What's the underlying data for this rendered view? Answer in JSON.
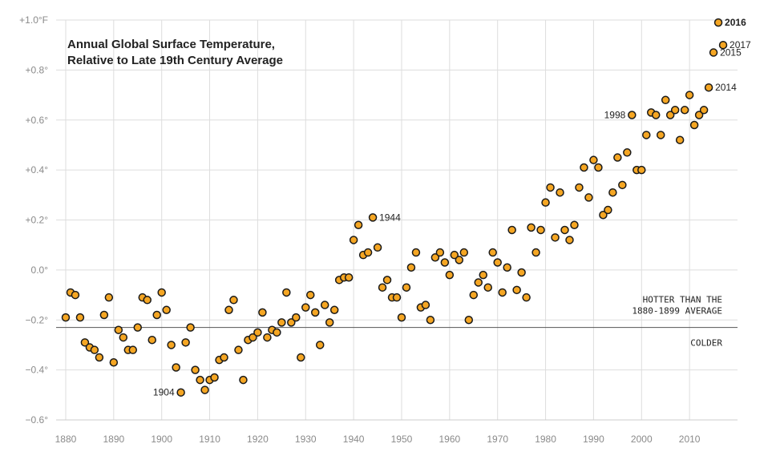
{
  "chart_data": {
    "type": "scatter",
    "title_lines": [
      "Annual Global Surface Temperature,",
      "Relative to Late 19th Century Average"
    ],
    "y_ticks": [
      {
        "value": 1.0,
        "label": "+1.0°F"
      },
      {
        "value": 0.8,
        "label": "+0.8°"
      },
      {
        "value": 0.6,
        "label": "+0.6°"
      },
      {
        "value": 0.4,
        "label": "+0.4°"
      },
      {
        "value": 0.2,
        "label": "+0.2°"
      },
      {
        "value": 0.0,
        "label": "0.0°"
      },
      {
        "value": -0.2,
        "label": "−0.2°"
      },
      {
        "value": -0.4,
        "label": "−0.4°"
      },
      {
        "value": -0.6,
        "label": "−0.6°"
      }
    ],
    "x_ticks": [
      {
        "value": 1880,
        "label": "1880"
      },
      {
        "value": 1890,
        "label": "1890"
      },
      {
        "value": 1900,
        "label": "1900"
      },
      {
        "value": 1910,
        "label": "1910"
      },
      {
        "value": 1920,
        "label": "1920"
      },
      {
        "value": 1930,
        "label": "1930"
      },
      {
        "value": 1940,
        "label": "1940"
      },
      {
        "value": 1950,
        "label": "1950"
      },
      {
        "value": 1960,
        "label": "1960"
      },
      {
        "value": 1970,
        "label": "1970"
      },
      {
        "value": 1980,
        "label": "1980"
      },
      {
        "value": 1990,
        "label": "1990"
      },
      {
        "value": 2000,
        "label": "2000"
      },
      {
        "value": 2010,
        "label": "2010"
      }
    ],
    "xlim": [
      1878,
      2020
    ],
    "ylim": [
      -0.6,
      1.0
    ],
    "grid": true,
    "reference_value": -0.23,
    "reference_text": {
      "above_lines": [
        "HOTTER THAN THE",
        "1880-1899 AVERAGE"
      ],
      "below": "COLDER"
    },
    "marker_color": "#f5a623",
    "marker_edge": "#1a1a1a",
    "gridline_color": "#dddddd",
    "reference_color": "#555555",
    "x": [
      1880,
      1881,
      1882,
      1883,
      1884,
      1885,
      1886,
      1887,
      1888,
      1889,
      1890,
      1891,
      1892,
      1893,
      1894,
      1895,
      1896,
      1897,
      1898,
      1899,
      1900,
      1901,
      1902,
      1903,
      1904,
      1905,
      1906,
      1907,
      1908,
      1909,
      1910,
      1911,
      1912,
      1913,
      1914,
      1915,
      1916,
      1917,
      1918,
      1919,
      1920,
      1921,
      1922,
      1923,
      1924,
      1925,
      1926,
      1927,
      1928,
      1929,
      1930,
      1931,
      1932,
      1933,
      1934,
      1935,
      1936,
      1937,
      1938,
      1939,
      1940,
      1941,
      1942,
      1943,
      1944,
      1945,
      1946,
      1947,
      1948,
      1949,
      1950,
      1951,
      1952,
      1953,
      1954,
      1955,
      1956,
      1957,
      1958,
      1959,
      1960,
      1961,
      1962,
      1963,
      1964,
      1965,
      1966,
      1967,
      1968,
      1969,
      1970,
      1971,
      1972,
      1973,
      1974,
      1975,
      1976,
      1977,
      1978,
      1979,
      1980,
      1981,
      1982,
      1983,
      1984,
      1985,
      1986,
      1987,
      1988,
      1989,
      1990,
      1991,
      1992,
      1993,
      1994,
      1995,
      1996,
      1997,
      1998,
      1999,
      2000,
      2001,
      2002,
      2003,
      2004,
      2005,
      2006,
      2007,
      2008,
      2009,
      2010,
      2011,
      2012,
      2013,
      2014,
      2015,
      2016,
      2017
    ],
    "y": [
      -0.19,
      -0.09,
      -0.1,
      -0.19,
      -0.29,
      -0.31,
      -0.32,
      -0.35,
      -0.18,
      -0.11,
      -0.37,
      -0.24,
      -0.27,
      -0.32,
      -0.32,
      -0.23,
      -0.11,
      -0.12,
      -0.28,
      -0.18,
      -0.09,
      -0.16,
      -0.3,
      -0.39,
      -0.49,
      -0.29,
      -0.23,
      -0.4,
      -0.44,
      -0.48,
      -0.44,
      -0.43,
      -0.36,
      -0.35,
      -0.16,
      -0.12,
      -0.32,
      -0.44,
      -0.28,
      -0.27,
      -0.25,
      -0.17,
      -0.27,
      -0.24,
      -0.25,
      -0.21,
      -0.09,
      -0.21,
      -0.19,
      -0.35,
      -0.15,
      -0.1,
      -0.17,
      -0.3,
      -0.14,
      -0.21,
      -0.16,
      -0.04,
      -0.03,
      -0.03,
      0.12,
      0.18,
      0.06,
      0.07,
      0.21,
      0.09,
      -0.07,
      -0.04,
      -0.11,
      -0.11,
      -0.19,
      -0.07,
      0.01,
      0.07,
      -0.15,
      -0.14,
      -0.2,
      0.05,
      0.07,
      0.03,
      -0.02,
      0.06,
      0.04,
      0.07,
      -0.2,
      -0.1,
      -0.05,
      -0.02,
      -0.07,
      0.07,
      0.03,
      -0.09,
      0.01,
      0.16,
      -0.08,
      -0.01,
      -0.11,
      0.17,
      0.07,
      0.16,
      0.27,
      0.33,
      0.13,
      0.31,
      0.16,
      0.12,
      0.18,
      0.33,
      0.41,
      0.29,
      0.44,
      0.41,
      0.22,
      0.24,
      0.31,
      0.45,
      0.34,
      0.47,
      0.62,
      0.4,
      0.4,
      0.54,
      0.63,
      0.62,
      0.54,
      0.68,
      0.62,
      0.64,
      0.52,
      0.64,
      0.7,
      0.58,
      0.62,
      0.64,
      0.73,
      0.87,
      0.99,
      0.9
    ],
    "point_labels": [
      {
        "year": 1904,
        "text": "1904",
        "side": "left",
        "bold": false
      },
      {
        "year": 1944,
        "text": "1944",
        "side": "right",
        "bold": false
      },
      {
        "year": 1998,
        "text": "1998",
        "side": "left",
        "bold": false
      },
      {
        "year": 2014,
        "text": "2014",
        "side": "right",
        "bold": false
      },
      {
        "year": 2015,
        "text": "2015",
        "side": "right",
        "bold": false
      },
      {
        "year": 2016,
        "text": "2016",
        "side": "right",
        "bold": true
      },
      {
        "year": 2017,
        "text": "2017",
        "side": "right",
        "bold": false
      }
    ]
  }
}
